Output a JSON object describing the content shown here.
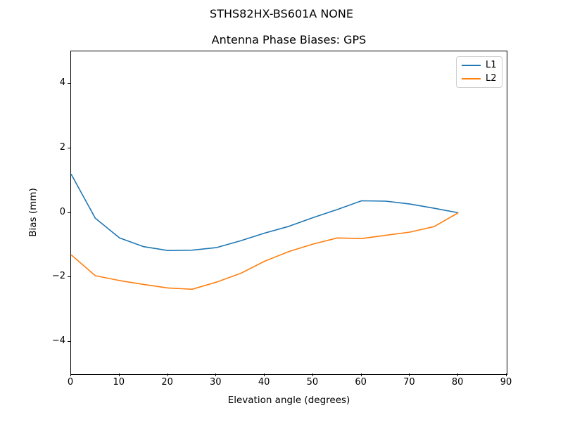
{
  "figure": {
    "suptitle": "STHS82HX-BS601A NONE",
    "background_color": "#ffffff"
  },
  "chart_data": {
    "type": "line",
    "title": "Antenna Phase Biases: GPS",
    "xlabel": "Elevation angle (degrees)",
    "ylabel": "Bias (mm)",
    "xlim": [
      0,
      90
    ],
    "ylim": [
      -5,
      5
    ],
    "grid": false,
    "legend_position": "upper right",
    "xticks": {
      "values": [
        0,
        10,
        20,
        30,
        40,
        50,
        60,
        70,
        80,
        90
      ],
      "labels": [
        "0",
        "10",
        "20",
        "30",
        "40",
        "50",
        "60",
        "70",
        "80",
        "90"
      ]
    },
    "yticks": {
      "values": [
        -4,
        -2,
        0,
        2,
        4
      ],
      "labels": [
        "−4",
        "−2",
        "0",
        "2",
        "4"
      ]
    },
    "x": [
      0,
      5,
      10,
      15,
      20,
      25,
      30,
      35,
      40,
      45,
      50,
      55,
      60,
      65,
      70,
      75,
      80
    ],
    "series": [
      {
        "name": "L1",
        "color": "#1f77b4",
        "y": [
          1.2,
          -0.17,
          -0.78,
          -1.05,
          -1.17,
          -1.16,
          -1.08,
          -0.87,
          -0.63,
          -0.42,
          -0.15,
          0.1,
          0.37,
          0.36,
          0.27,
          0.14,
          0.0
        ]
      },
      {
        "name": "L2",
        "color": "#ff7f0e",
        "y": [
          -1.3,
          -1.95,
          -2.1,
          -2.22,
          -2.33,
          -2.37,
          -2.15,
          -1.88,
          -1.5,
          -1.2,
          -0.97,
          -0.78,
          -0.8,
          -0.7,
          -0.6,
          -0.43,
          0.0
        ]
      }
    ]
  }
}
